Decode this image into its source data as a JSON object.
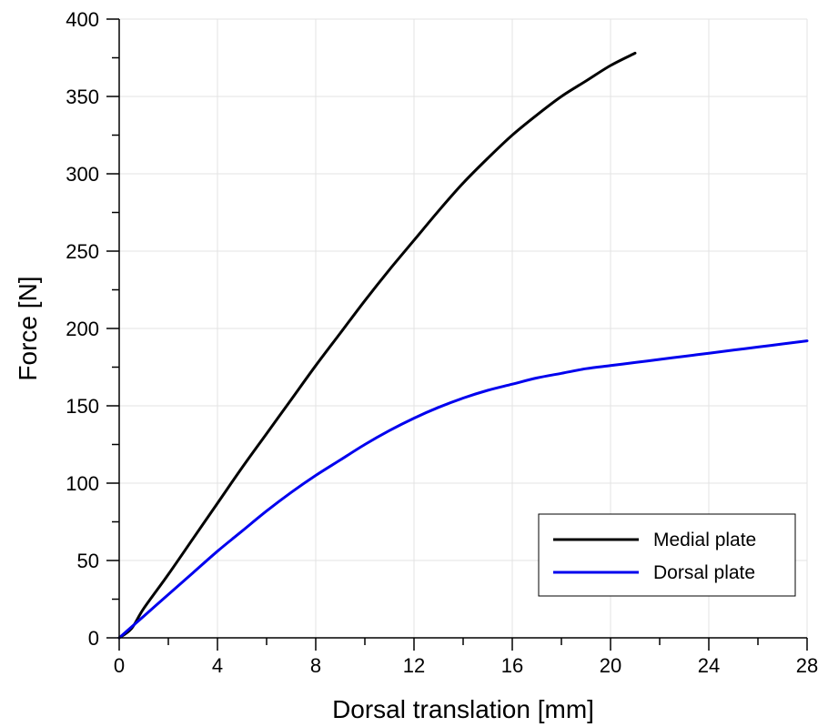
{
  "chart_data": {
    "type": "line",
    "title": "",
    "xlabel": "Dorsal translation [mm]",
    "ylabel": "Force [N]",
    "xlim": [
      0,
      28
    ],
    "ylim": [
      0,
      400
    ],
    "x_ticks": [
      0,
      4,
      8,
      12,
      16,
      20,
      24,
      28
    ],
    "x_tick_labels": [
      "0",
      "4",
      "8",
      "12",
      "16",
      "20",
      "24",
      "28"
    ],
    "y_ticks": [
      0,
      50,
      100,
      150,
      200,
      250,
      300,
      350,
      400
    ],
    "y_tick_labels": [
      "0",
      "50",
      "100",
      "150",
      "200",
      "250",
      "300",
      "350",
      "400"
    ],
    "x_minor_step": 2,
    "y_minor_step": 25,
    "grid": true,
    "legend_position": "bottom-right",
    "series": [
      {
        "name": "Medial plate",
        "color": "#000000",
        "x": [
          0,
          0.5,
          1,
          2,
          3,
          4,
          5,
          6,
          7,
          8,
          9,
          10,
          11,
          12,
          13,
          14,
          15,
          16,
          17,
          18,
          19,
          20,
          21
        ],
        "y": [
          0,
          6,
          19,
          41,
          64,
          87,
          110,
          132,
          154,
          176,
          197,
          218,
          238,
          257,
          276,
          294,
          310,
          325,
          338,
          350,
          360,
          370,
          378
        ]
      },
      {
        "name": "Dorsal plate",
        "color": "#0000ee",
        "x": [
          0,
          1,
          2,
          3,
          4,
          5,
          6,
          7,
          8,
          9,
          10,
          11,
          12,
          13,
          14,
          15,
          16,
          17,
          18,
          19,
          20,
          21,
          22,
          23,
          24,
          25,
          26,
          27,
          28
        ],
        "y": [
          0,
          14,
          28,
          42,
          56,
          69,
          82,
          94,
          105,
          115,
          125,
          134,
          142,
          149,
          155,
          160,
          164,
          168,
          171,
          174,
          176,
          178,
          180,
          182,
          184,
          186,
          188,
          190,
          192
        ]
      }
    ]
  }
}
